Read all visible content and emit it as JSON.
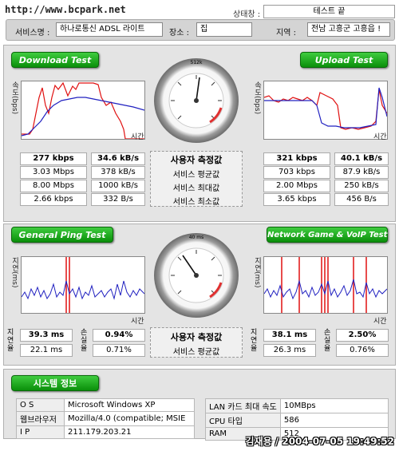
{
  "header": {
    "url": "http://www.bcpark.net",
    "status_label": "상태창 :",
    "status_value": "테스트 끝",
    "service_label": "서비스명 :",
    "service_value": "하나로통신 ADSL 라이트",
    "place_label": "장소 :",
    "place_value": "집",
    "region_label": "지역 :",
    "region_value": "전남 고흥군 고흥읍 !"
  },
  "download": {
    "tab": "Download Test",
    "ylabel": "속도(bps)",
    "xlabel": "시간",
    "rows": [
      [
        "277 kbps",
        "34.6 kB/s"
      ],
      [
        "3.03 Mbps",
        "378 kB/s"
      ],
      [
        "8.00 Mbps",
        "1000 kB/s"
      ],
      [
        "2.66 kbps",
        "332 B/s"
      ]
    ]
  },
  "upload": {
    "tab": "Upload Test",
    "ylabel": "속도(bps)",
    "xlabel": "시간",
    "rows": [
      [
        "321 kbps",
        "40.1 kB/s"
      ],
      [
        "703 kbps",
        "87.9 kB/s"
      ],
      [
        "2.00 Mbps",
        "250 kB/s"
      ],
      [
        "3.65 kbps",
        "456 B/s"
      ]
    ]
  },
  "speed_labels": [
    "사용자 측정값",
    "서비스 평균값",
    "서비스 최대값",
    "서비스 최소값"
  ],
  "speed_gauge": {
    "ticks": [
      "100k",
      "256k",
      "512k",
      "1M",
      "2M",
      "4M",
      "8M",
      "10M",
      "0k",
      "50k"
    ]
  },
  "ping": {
    "tab": "General Ping Test",
    "ylabel": "지연(ms)",
    "xlabel": "시간",
    "row_labels": [
      "지연율",
      "손실율"
    ],
    "rows": [
      [
        "39.3 ms",
        "0.94%"
      ],
      [
        "22.1 ms",
        "0.71%"
      ]
    ]
  },
  "game": {
    "tab": "Network Game & VoIP Test",
    "ylabel": "지연(ms)",
    "xlabel": "시간",
    "row_labels": [
      "지연율",
      "손실율"
    ],
    "rows": [
      [
        "38.1 ms",
        "2.50%"
      ],
      [
        "26.3 ms",
        "0.76%"
      ]
    ]
  },
  "ping_labels": [
    "사용자 측정값",
    "서비스 평균값"
  ],
  "ping_gauge": {
    "ticks": [
      "40 ms",
      "50 ms",
      "60 ms",
      "30 ms",
      "20 ms",
      "10 ms",
      "0 ms",
      "100 ms",
      "120 ms",
      "150 ms"
    ]
  },
  "system": {
    "tab": "시스템 정보",
    "rows": [
      [
        "O S",
        "Microsoft Windows XP",
        "LAN 카드 최대 속도",
        "10MBps"
      ],
      [
        "웹브라우저",
        "Mozilla/4.0 (compatible; MSIE",
        "CPU 타입",
        "586"
      ],
      [
        "I P",
        "211.179.203.21",
        "RAM",
        "512"
      ]
    ]
  },
  "footer": "김재용 / 2004-07-05 19:49:52",
  "colors": {
    "green": "#14a514",
    "red_line": "#e01010",
    "blue_line": "#2020c0"
  }
}
